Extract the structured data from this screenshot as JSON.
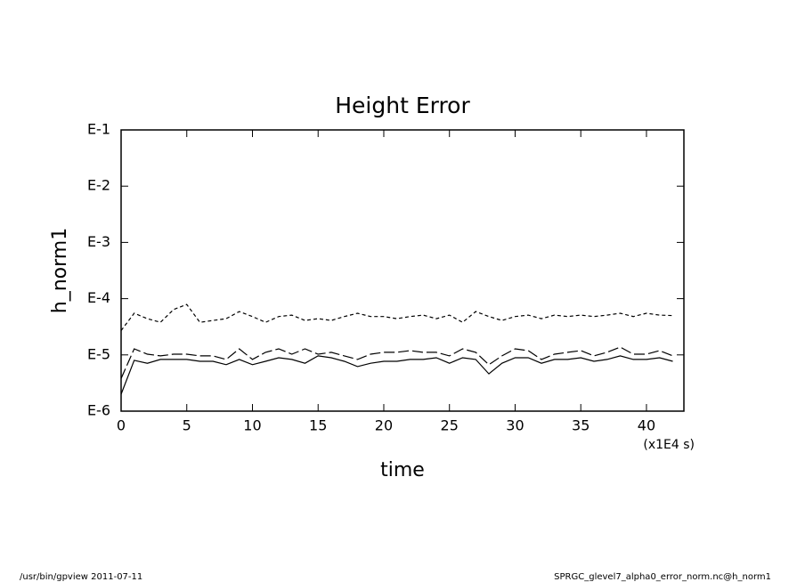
{
  "chart_data": {
    "type": "line",
    "title": "Height Error",
    "y_label": "h_norm1",
    "x_label": "time",
    "x_unit": "(x1E4 s)",
    "log_y": true,
    "x": [
      0,
      1,
      2,
      3,
      4,
      5,
      6,
      7,
      8,
      9,
      10,
      11,
      12,
      13,
      14,
      15,
      16,
      17,
      18,
      19,
      20,
      21,
      22,
      23,
      24,
      25,
      26,
      27,
      28,
      29,
      30,
      31,
      32,
      33,
      34,
      35,
      36,
      37,
      38,
      39,
      40,
      41,
      42
    ],
    "series": [
      {
        "color": "#000000",
        "dash": "none",
        "values": [
          2e-06,
          8e-06,
          7.1e-06,
          8.3e-06,
          8.3e-06,
          8.3e-06,
          7.7e-06,
          7.7e-06,
          6.7e-06,
          8.3e-06,
          6.7e-06,
          7.7e-06,
          8.9e-06,
          8.3e-06,
          7.1e-06,
          9.6e-06,
          8.9e-06,
          7.7e-06,
          6.2e-06,
          7.1e-06,
          7.7e-06,
          7.7e-06,
          8.3e-06,
          8.3e-06,
          8.9e-06,
          7.1e-06,
          8.9e-06,
          8.3e-06,
          4.6e-06,
          7.1e-06,
          8.9e-06,
          8.9e-06,
          7.1e-06,
          8.3e-06,
          8.3e-06,
          8.9e-06,
          7.7e-06,
          8.3e-06,
          9.6e-06,
          8.3e-06,
          8.3e-06,
          8.9e-06,
          7.7e-06
        ]
      },
      {
        "color": "#000000",
        "dash": "12,4",
        "values": [
          3.8e-06,
          1.28e-05,
          1.03e-05,
          9.6e-06,
          1.03e-05,
          1.03e-05,
          9.6e-06,
          9.6e-06,
          8.3e-06,
          1.28e-05,
          8.3e-06,
          1.11e-05,
          1.28e-05,
          1.03e-05,
          1.28e-05,
          1.03e-05,
          1.11e-05,
          9.6e-06,
          8.3e-06,
          1.03e-05,
          1.11e-05,
          1.11e-05,
          1.19e-05,
          1.11e-05,
          1.11e-05,
          9.6e-06,
          1.28e-05,
          1.11e-05,
          6.7e-06,
          9.6e-06,
          1.28e-05,
          1.19e-05,
          8.3e-06,
          1.03e-05,
          1.11e-05,
          1.19e-05,
          9.6e-06,
          1.11e-05,
          1.38e-05,
          1.03e-05,
          1.03e-05,
          1.19e-05,
          9.6e-06
        ]
      },
      {
        "color": "#000000",
        "dash": "4,3",
        "values": [
          2.7e-05,
          5.5e-05,
          4.4e-05,
          3.8e-05,
          6.4e-05,
          7.9e-05,
          3.8e-05,
          4.1e-05,
          4.4e-05,
          5.9e-05,
          4.8e-05,
          3.8e-05,
          4.8e-05,
          5.1e-05,
          4.1e-05,
          4.4e-05,
          4.1e-05,
          4.8e-05,
          5.5e-05,
          4.8e-05,
          4.8e-05,
          4.4e-05,
          4.8e-05,
          5.1e-05,
          4.4e-05,
          5.1e-05,
          3.8e-05,
          5.9e-05,
          4.8e-05,
          4.1e-05,
          4.8e-05,
          5.1e-05,
          4.4e-05,
          5.1e-05,
          4.8e-05,
          5.1e-05,
          4.8e-05,
          5.1e-05,
          5.5e-05,
          4.8e-05,
          5.5e-05,
          5.1e-05,
          5e-05
        ]
      }
    ],
    "xlim": [
      0,
      42.85
    ],
    "xticks": [
      0,
      5,
      10,
      15,
      20,
      25,
      30,
      35,
      40
    ],
    "ylim": [
      1e-06,
      0.1
    ],
    "yticks": [
      {
        "value": 1e-06,
        "label": "E-6"
      },
      {
        "value": 1e-05,
        "label": "E-5"
      },
      {
        "value": 0.0001,
        "label": "E-4"
      },
      {
        "value": 0.001,
        "label": "E-3"
      },
      {
        "value": 0.01,
        "label": "E-2"
      },
      {
        "value": 0.1,
        "label": "E-1"
      }
    ]
  },
  "footer": {
    "left": "/usr/bin/gpview  2011-07-11",
    "right": "SPRGC_glevel7_alpha0_error_norm.nc@h_norm1"
  }
}
